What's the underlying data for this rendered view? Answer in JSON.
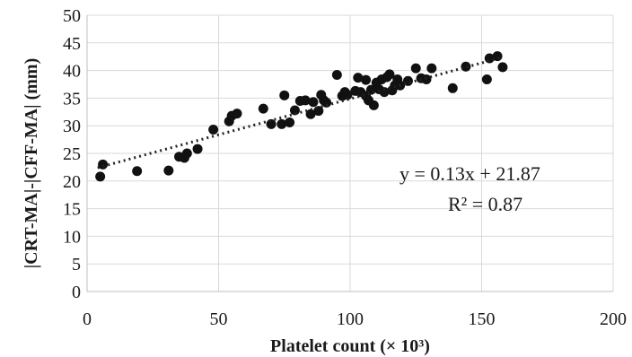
{
  "chart_data": {
    "type": "scatter",
    "xlabel": "Platelet count (× 10³)",
    "ylabel": "|CRT-MA|-|CFF-MA| (mm)",
    "xlim": [
      0,
      200
    ],
    "ylim": [
      0,
      50
    ],
    "x_ticks": [
      "0",
      "50",
      "100",
      "150",
      "200"
    ],
    "y_ticks": [
      "0",
      "5",
      "10",
      "15",
      "20",
      "25",
      "30",
      "35",
      "40",
      "45",
      "50"
    ],
    "grid": "vertical and horizontal major gridlines",
    "trendline": {
      "style": "dotted",
      "slope": 0.13,
      "intercept": 21.87,
      "x_range": [
        4,
        158
      ]
    },
    "annotations": {
      "equation": "y = 0.13x + 21.87",
      "r_squared": "R² = 0.87"
    },
    "points": [
      [
        5,
        20.8
      ],
      [
        6,
        23
      ],
      [
        19,
        21.8
      ],
      [
        31,
        21.9
      ],
      [
        35,
        24.4
      ],
      [
        37,
        24.2
      ],
      [
        38,
        25
      ],
      [
        42,
        25.8
      ],
      [
        48,
        29.3
      ],
      [
        54,
        30.8
      ],
      [
        55,
        31.8
      ],
      [
        57,
        32.2
      ],
      [
        67,
        33.1
      ],
      [
        70,
        30.3
      ],
      [
        74,
        30.3
      ],
      [
        75,
        35.5
      ],
      [
        77,
        30.6
      ],
      [
        79,
        32.8
      ],
      [
        81,
        34.5
      ],
      [
        83,
        34.6
      ],
      [
        85,
        32.1
      ],
      [
        86,
        34.3
      ],
      [
        88,
        32.7
      ],
      [
        89,
        35.6
      ],
      [
        90,
        34.6
      ],
      [
        91,
        34.2
      ],
      [
        95,
        39.2
      ],
      [
        97,
        35.4
      ],
      [
        98,
        36.1
      ],
      [
        99,
        35.6
      ],
      [
        102,
        36.3
      ],
      [
        103,
        38.7
      ],
      [
        104,
        36.1
      ],
      [
        106,
        35.4
      ],
      [
        106,
        38.3
      ],
      [
        107,
        34.6
      ],
      [
        108,
        36.5
      ],
      [
        109,
        33.7
      ],
      [
        110,
        37.8
      ],
      [
        111,
        36.6
      ],
      [
        112,
        38.4
      ],
      [
        113,
        36.1
      ],
      [
        114,
        38.8
      ],
      [
        115,
        39.3
      ],
      [
        116,
        36.4
      ],
      [
        117,
        37.3
      ],
      [
        118,
        38.4
      ],
      [
        119,
        37.3
      ],
      [
        122,
        38.1
      ],
      [
        125,
        40.4
      ],
      [
        127,
        38.6
      ],
      [
        129,
        38.4
      ],
      [
        131,
        40.4
      ],
      [
        139,
        36.8
      ],
      [
        144,
        40.7
      ],
      [
        152,
        38.4
      ],
      [
        153,
        42.2
      ],
      [
        156,
        42.6
      ],
      [
        158,
        40.6
      ]
    ]
  }
}
